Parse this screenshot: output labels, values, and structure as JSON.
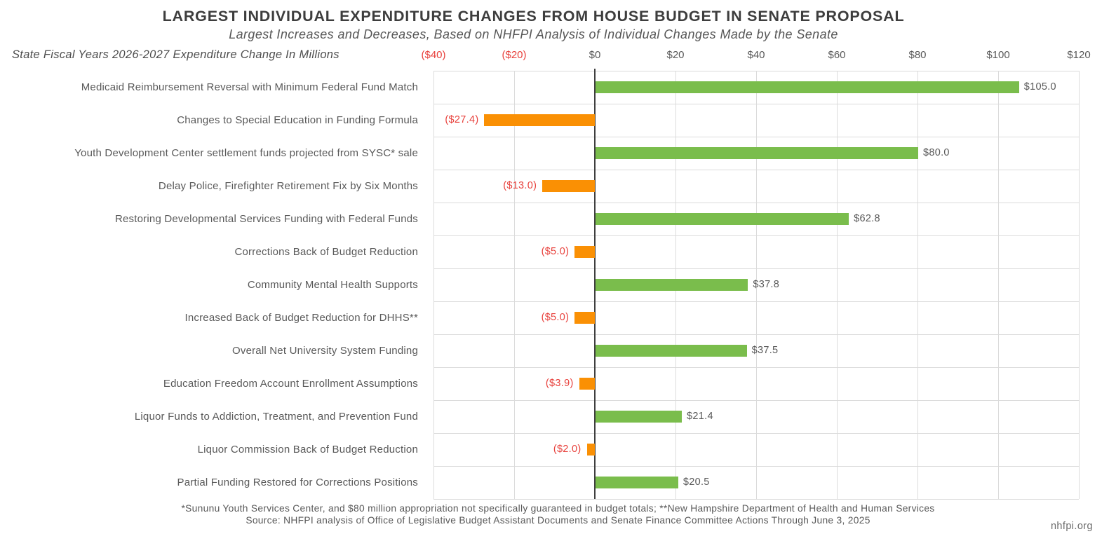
{
  "footer": {
    "footnote": "*Sununu Youth Services Center, and $80 million appropriation not specifically guaranteed in budget totals; **New Hampshire Department of Health and Human Services",
    "source": "Source: NHFPI analysis of Office of Legislative Budget Assistant Documents and Senate Finance Committee Actions Through June 3, 2025",
    "website": "nhfpi.org"
  },
  "colors": {
    "positive_bar": "#7ABD4C",
    "negative_bar": "#FA9004",
    "negative_text": "#E8413C",
    "positive_text": "#595959",
    "grid": "#DBDBDB",
    "zero_line": "#3F3F3F",
    "title_text": "#3D3D3D"
  },
  "chart_data": {
    "type": "bar",
    "orientation": "horizontal",
    "title": "LARGEST INDIVIDUAL EXPENDITURE CHANGES FROM HOUSE BUDGET IN SENATE PROPOSAL",
    "subtitle": "Largest Increases and Decreases, Based on NHFPI Analysis of Individual Changes Made by the Senate",
    "xlabel": "State Fiscal Years 2026-2027 Expenditure Change In Millions",
    "xlim": [
      -40,
      120
    ],
    "grid": true,
    "legend": false,
    "ticks": [
      {
        "value": -40,
        "label": "($40)"
      },
      {
        "value": -20,
        "label": "($20)"
      },
      {
        "value": 0,
        "label": "$0"
      },
      {
        "value": 20,
        "label": "$20"
      },
      {
        "value": 40,
        "label": "$40"
      },
      {
        "value": 60,
        "label": "$60"
      },
      {
        "value": 80,
        "label": "$80"
      },
      {
        "value": 100,
        "label": "$100"
      },
      {
        "value": 120,
        "label": "$120"
      }
    ],
    "categories": [
      "Medicaid Reimbursement Reversal with Minimum Federal Fund Match",
      "Changes to Special Education in Funding Formula",
      "Youth Development Center settlement funds projected from SYSC* sale",
      "Delay Police, Firefighter Retirement Fix by Six Months",
      "Restoring Developmental Services Funding with Federal Funds",
      "Corrections Back of Budget Reduction",
      "Community Mental Health Supports",
      "Increased Back of Budget Reduction for DHHS**",
      "Overall Net University System Funding",
      "Education Freedom Account Enrollment Assumptions",
      "Liquor Funds to Addiction, Treatment, and Prevention Fund",
      "Liquor Commission Back of Budget Reduction",
      "Partial Funding Restored for Corrections Positions"
    ],
    "values": [
      105.0,
      -27.4,
      80.0,
      -13.0,
      62.8,
      -5.0,
      37.8,
      -5.0,
      37.5,
      -3.9,
      21.4,
      -2.0,
      20.5
    ],
    "value_labels": [
      "$105.0",
      "($27.4)",
      "$80.0",
      "($13.0)",
      "$62.8",
      "($5.0)",
      "$37.8",
      "($5.0)",
      "$37.5",
      "($3.9)",
      "$21.4",
      "($2.0)",
      "$20.5"
    ]
  }
}
